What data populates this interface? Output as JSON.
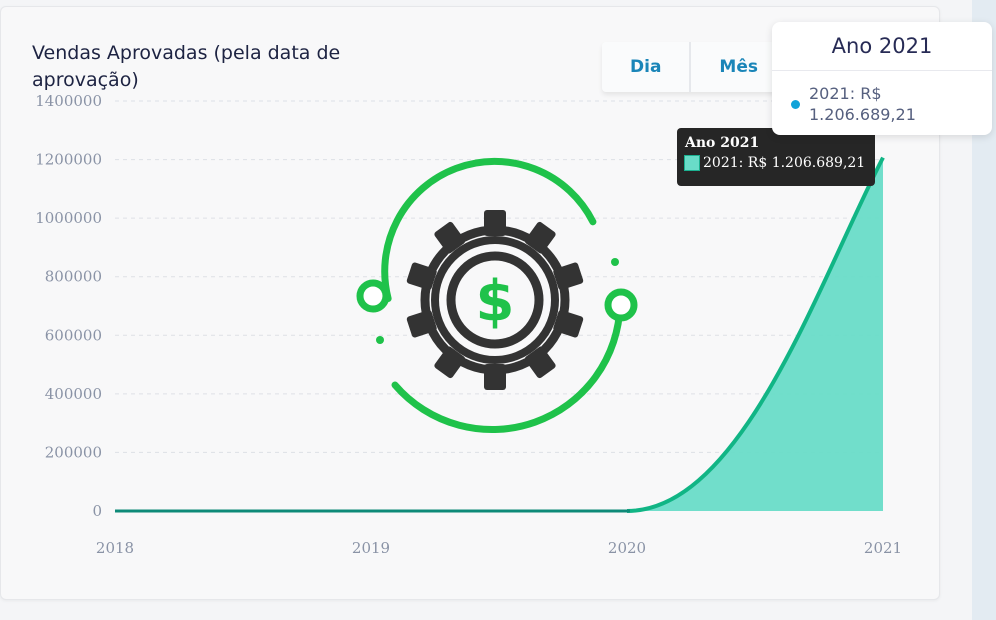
{
  "title": "Vendas Aprovadas (pela data de aprovação)",
  "buttons": [
    "Dia",
    "Mês"
  ],
  "tooltip_main": {
    "title": "Ano 2021",
    "label": "2021: R$",
    "value": "1.206.689,21"
  },
  "tooltip_native": {
    "title": "Ano 2021",
    "text": "2021: R$ 1.206.689,21"
  },
  "colors": {
    "area": "#69dcc8",
    "line": "#11b585",
    "dot": "#11a3d9",
    "icon_green": "#1fc24a",
    "icon_gear": "#333333"
  },
  "icon": "gear-dollar-icon",
  "chart_data": {
    "type": "area",
    "title": "Vendas Aprovadas (pela data de aprovação)",
    "categories": [
      "2018",
      "2019",
      "2020",
      "2021"
    ],
    "values": [
      0,
      0,
      0,
      1206689.21
    ],
    "ylim": [
      0,
      1400000
    ],
    "yticks": [
      "0",
      "200000",
      "400000",
      "600000",
      "800000",
      "1000000",
      "1200000",
      "1400000"
    ],
    "grid": true,
    "legend": "none"
  }
}
